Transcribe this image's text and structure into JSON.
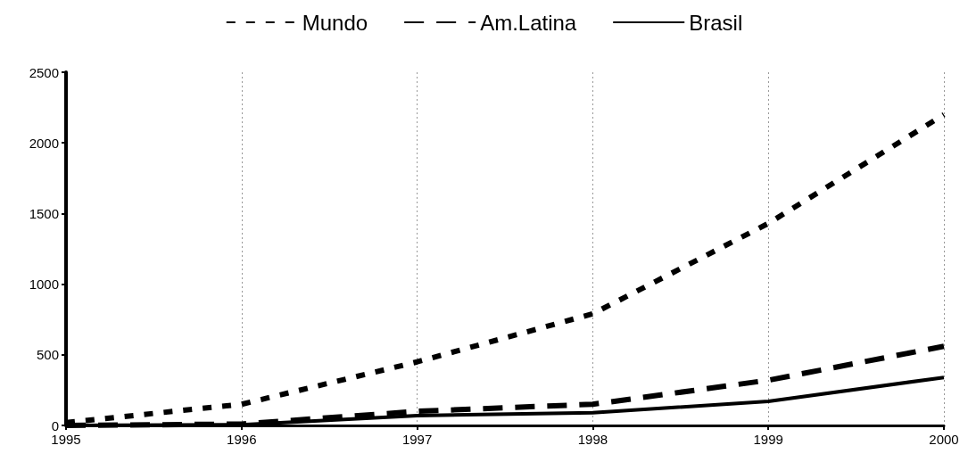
{
  "chart_data": {
    "type": "line",
    "x": [
      1995,
      1996,
      1997,
      1998,
      1999,
      2000
    ],
    "series": [
      {
        "name": "Mundo",
        "color": "#000000",
        "line_style": "dotted",
        "values": [
          20,
          150,
          450,
          790,
          1430,
          2200
        ]
      },
      {
        "name": "Am.Latina",
        "color": "#000000",
        "line_style": "dashed",
        "values": [
          0,
          10,
          100,
          150,
          320,
          560
        ]
      },
      {
        "name": "Brasil",
        "color": "#000000",
        "line_style": "solid",
        "values": [
          0,
          5,
          70,
          90,
          170,
          340
        ]
      }
    ],
    "xlim": [
      1995,
      2000
    ],
    "xticks": [
      1995,
      1996,
      1997,
      1998,
      1999,
      2000
    ],
    "ylim": [
      0,
      2500
    ],
    "yticks": [
      0,
      500,
      1000,
      1500,
      2000,
      2500
    ],
    "grid": "x",
    "legend": "top",
    "marker": "none"
  }
}
